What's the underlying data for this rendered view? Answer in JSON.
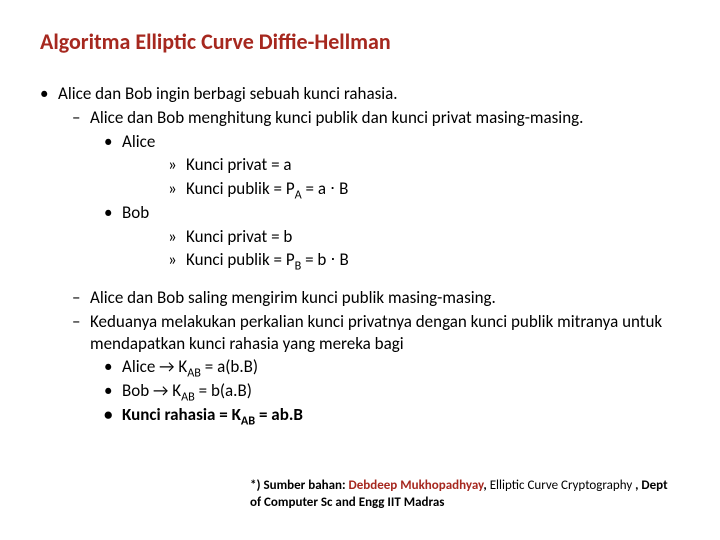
{
  "title": "Algoritma Elliptic Curve Diffie-Hellman",
  "l1_1": "Alice dan Bob ingin berbagi sebuah kunci rahasia.",
  "l2_1": "Alice dan Bob menghitung kunci publik dan kunci privat masing-masing.",
  "l3_alice": "Alice",
  "alice_priv_pre": "Kunci privat = a",
  "alice_pub_pre": "Kunci publik = P",
  "alice_pub_sub": "A",
  "alice_pub_post": " = a ⋅ B",
  "l3_bob": "Bob",
  "bob_priv_pre": "Kunci privat = b",
  "bob_pub_pre": "Kunci publik = P",
  "bob_pub_sub": "B",
  "bob_pub_post": " = b ⋅ B",
  "l2_2": "Alice dan Bob saling mengirim kunci publik masing-masing.",
  "l2_3": "Keduanya melakukan perkalian kunci privatnya dengan kunci publik mitranya untuk mendapatkan kunci rahasia yang mereka bagi",
  "l3_kab_a_pre": "Alice → K",
  "l3_kab_a_sub": "AB",
  "l3_kab_a_post": " = a(b.B)",
  "l3_kab_b_pre": "Bob → K",
  "l3_kab_b_sub": "AB",
  "l3_kab_b_post": " = b(a.B)",
  "l3_secret_pre": "Kunci rahasia = K",
  "l3_secret_sub": "AB",
  "l3_secret_post": " = ab.B",
  "foot_lead": "*) Sumber bahan: ",
  "foot_author": "Debdeep Mukhopadhyay",
  "foot_comma": ", ",
  "foot_title": "Elliptic Curve Cryptography",
  "foot_tail": " , Dept of Computer Sc and Engg IIT Madras",
  "bul1": "•",
  "bul2": "–",
  "bul3": "•",
  "bul4": "»"
}
